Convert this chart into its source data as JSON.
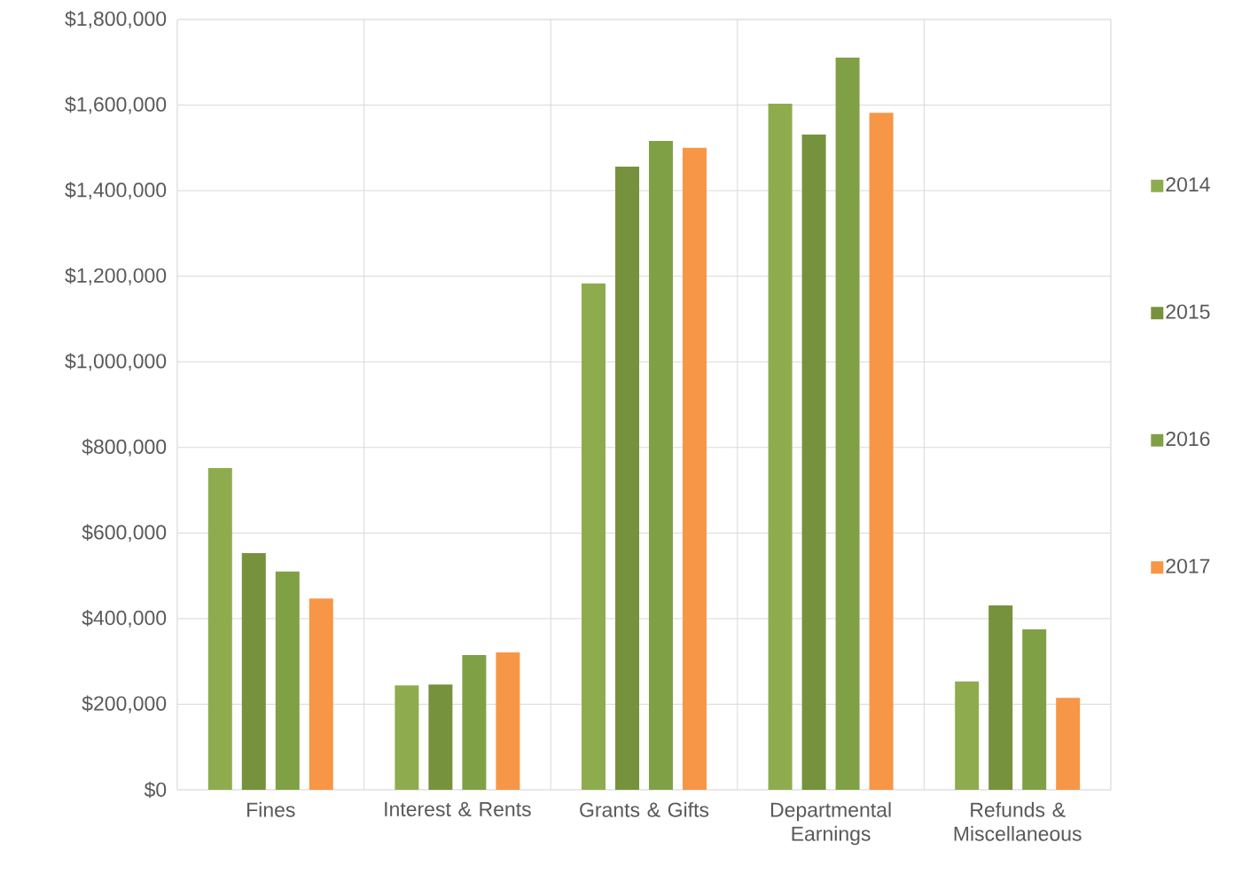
{
  "chart_data": {
    "type": "bar",
    "categories": [
      "Fines",
      "Interest & Rents",
      "Grants & Gifts",
      "Departmental Earnings",
      "Refunds & Miscellaneous"
    ],
    "series": [
      {
        "name": "2014",
        "color": "#8eac4e",
        "values": [
          752000,
          244000,
          1183000,
          1603000,
          253000
        ]
      },
      {
        "name": "2015",
        "color": "#76923c",
        "values": [
          553000,
          246000,
          1456000,
          1531000,
          431000
        ]
      },
      {
        "name": "2016",
        "color": "#80a046",
        "values": [
          510000,
          315000,
          1516000,
          1711000,
          375000
        ]
      },
      {
        "name": "2017",
        "color": "#f79646",
        "values": [
          447000,
          321000,
          1500000,
          1582000,
          215000
        ]
      }
    ],
    "ylim": [
      0,
      1800000
    ],
    "yticks": [
      {
        "value": 0,
        "label": "$0"
      },
      {
        "value": 200000,
        "label": "$200,000"
      },
      {
        "value": 400000,
        "label": "$400,000"
      },
      {
        "value": 600000,
        "label": "$600,000"
      },
      {
        "value": 800000,
        "label": "$800,000"
      },
      {
        "value": 1000000,
        "label": "$1,000,000"
      },
      {
        "value": 1200000,
        "label": "$1,200,000"
      },
      {
        "value": 1400000,
        "label": "$1,400,000"
      },
      {
        "value": 1600000,
        "label": "$1,600,000"
      },
      {
        "value": 1800000,
        "label": "$1,800,000"
      }
    ],
    "grid": true,
    "legend": "right"
  }
}
